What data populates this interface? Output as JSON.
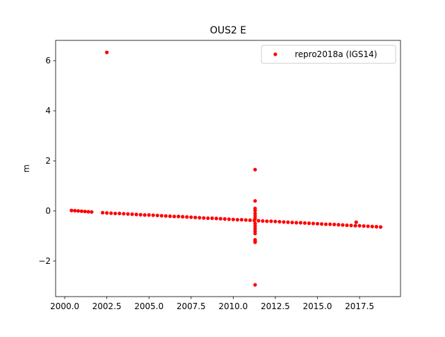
{
  "chart_data": {
    "type": "scatter",
    "title": "OUS2 E",
    "ylabel": "m",
    "series": [
      {
        "name": "repro2018a (IGS14)",
        "color": "#ff0000",
        "x": [
          2000.4,
          2000.6,
          2000.8,
          2001.0,
          2001.2,
          2001.4,
          2001.6,
          2002.25,
          2002.5,
          2002.75,
          2003,
          2003.25,
          2003.5,
          2003.75,
          2004,
          2004.25,
          2004.5,
          2004.75,
          2005,
          2005.25,
          2005.5,
          2005.75,
          2006,
          2006.25,
          2006.5,
          2006.75,
          2007,
          2007.25,
          2007.5,
          2007.75,
          2008,
          2008.25,
          2008.5,
          2008.75,
          2009,
          2009.25,
          2009.5,
          2009.75,
          2010,
          2010.25,
          2010.5,
          2010.75,
          2011,
          2011.25,
          2011.5,
          2011.75,
          2012,
          2012.25,
          2012.5,
          2012.75,
          2013,
          2013.25,
          2013.5,
          2013.75,
          2014,
          2014.25,
          2014.5,
          2014.75,
          2015,
          2015.25,
          2015.5,
          2015.75,
          2016,
          2016.25,
          2016.5,
          2016.75,
          2017,
          2017.25,
          2017.5,
          2017.75,
          2018,
          2018.25,
          2018.5,
          2018.75,
          2002.5,
          2011.3,
          2011.3,
          2011.3,
          2011.3,
          2011.3,
          2011.3,
          2011.3,
          2011.3,
          2011.3,
          2011.3,
          2011.3,
          2011.3,
          2011.3,
          2011.3,
          2011.3,
          2011.3,
          2017.3
        ],
        "values": [
          0.02,
          0.01,
          0,
          -0.01,
          -0.02,
          -0.03,
          -0.04,
          -0.07,
          -0.08,
          -0.09,
          -0.1,
          -0.1,
          -0.11,
          -0.12,
          -0.13,
          -0.14,
          -0.15,
          -0.16,
          -0.16,
          -0.17,
          -0.18,
          -0.19,
          -0.2,
          -0.21,
          -0.22,
          -0.22,
          -0.23,
          -0.24,
          -0.25,
          -0.26,
          -0.27,
          -0.28,
          -0.29,
          -0.29,
          -0.3,
          -0.31,
          -0.32,
          -0.33,
          -0.34,
          -0.35,
          -0.35,
          -0.36,
          -0.37,
          -0.38,
          -0.39,
          -0.4,
          -0.41,
          -0.41,
          -0.42,
          -0.43,
          -0.44,
          -0.45,
          -0.46,
          -0.47,
          -0.47,
          -0.48,
          -0.49,
          -0.5,
          -0.51,
          -0.52,
          -0.53,
          -0.53,
          -0.54,
          -0.55,
          -0.56,
          -0.57,
          -0.58,
          -0.59,
          -0.59,
          -0.6,
          -0.61,
          -0.62,
          -0.63,
          -0.64,
          6.33,
          1.65,
          0.4,
          0.1,
          0.02,
          -0.1,
          -0.2,
          -0.3,
          -0.5,
          -0.6,
          -0.7,
          -0.8,
          -0.9,
          -1.15,
          -1.2,
          -1.25,
          -2.95,
          -0.45
        ]
      }
    ],
    "xlim": [
      1999.46,
      2019.93
    ],
    "ylim": [
      -3.42,
      6.81
    ],
    "xticks": [
      {
        "value": 2000,
        "label": "2000.0"
      },
      {
        "value": 2002.5,
        "label": "2002.5"
      },
      {
        "value": 2005,
        "label": "2005.0"
      },
      {
        "value": 2007.5,
        "label": "2007.5"
      },
      {
        "value": 2010,
        "label": "2010.0"
      },
      {
        "value": 2012.5,
        "label": "2012.5"
      },
      {
        "value": 2015,
        "label": "2015.0"
      },
      {
        "value": 2017.5,
        "label": "2017.5"
      }
    ],
    "yticks": [
      {
        "value": -2,
        "label": "−2"
      },
      0,
      2,
      4,
      6
    ],
    "legend": "upper right"
  }
}
